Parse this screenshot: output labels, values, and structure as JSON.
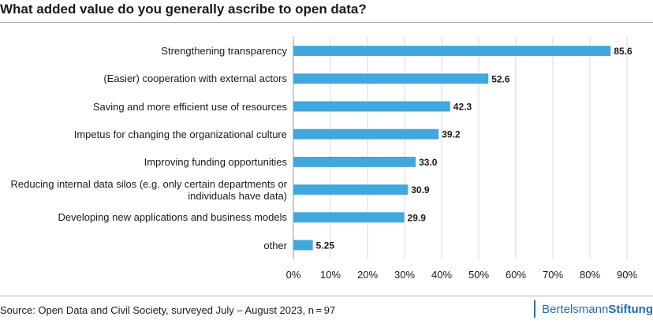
{
  "title": "What added value do you generally ascribe to open data?",
  "source": "Source: Open Data and Civil Society, surveyed July – August 2023, n = 97",
  "brand": {
    "part1": "Bertelsmann",
    "part2": "Stiftung"
  },
  "colors": {
    "bar": "#41a7dd",
    "grid": "#d9d9d9",
    "axis": "#999999",
    "brand": "#1f6eb5"
  },
  "chart_data": {
    "type": "bar",
    "orientation": "horizontal",
    "title": "What added value do you generally ascribe to open data?",
    "xlabel": "",
    "ylabel": "",
    "unit": "%",
    "xlim": [
      0,
      90
    ],
    "xticks": [
      0,
      10,
      20,
      30,
      40,
      50,
      60,
      70,
      80,
      90
    ],
    "xtick_labels": [
      "0%",
      "10%",
      "20%",
      "30%",
      "40%",
      "50%",
      "60%",
      "70%",
      "80%",
      "90%"
    ],
    "grid": true,
    "categories": [
      "Strengthening transparency",
      "(Easier) cooperation with external actors",
      "Saving and more efficient use of resources",
      "Impetus for changing the organizational culture",
      "Improving funding opportunities",
      "Reducing internal data silos (e.g. only certain departments or individuals have data)",
      "Developing new applications and business models",
      "other"
    ],
    "label_lines": [
      [
        "Strengthening transparency"
      ],
      [
        "(Easier) cooperation with external actors"
      ],
      [
        "Saving and more efficient use of resources"
      ],
      [
        "Impetus for changing the organizational culture"
      ],
      [
        "Improving funding opportunities"
      ],
      [
        "Reducing internal data silos (e.g. only certain departments or",
        "individuals have data)"
      ],
      [
        "Developing new applications and business models"
      ],
      [
        "other"
      ]
    ],
    "values": [
      85.6,
      52.6,
      42.3,
      39.2,
      33.0,
      30.9,
      29.9,
      5.25
    ],
    "value_labels": [
      "85.6",
      "52.6",
      "42.3",
      "39.2",
      "33.0",
      "30.9",
      "29.9",
      "5.25"
    ]
  }
}
